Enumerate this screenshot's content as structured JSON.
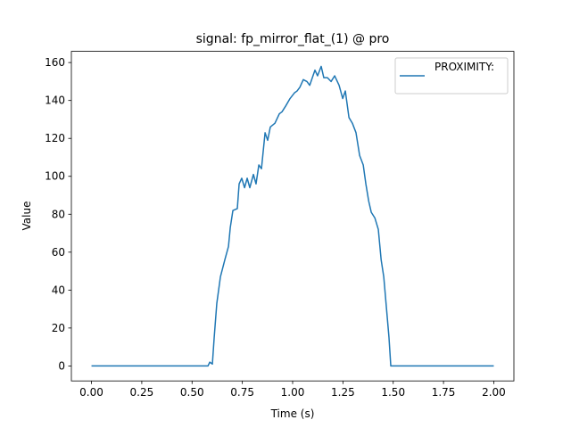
{
  "chart_data": {
    "type": "line",
    "title": "signal: fp_mirror_flat_(1) @ pro",
    "x_label": "Time (s)",
    "y_label": "Value",
    "xlim": [
      -0.1,
      2.1
    ],
    "ylim": [
      -7.9,
      165.9
    ],
    "xticks": [
      {
        "value": 0,
        "label": "0.00"
      },
      {
        "value": 0.25,
        "label": "0.25"
      },
      {
        "value": 0.5,
        "label": "0.50"
      },
      {
        "value": 0.75,
        "label": "0.75"
      },
      {
        "value": 1,
        "label": "1.00"
      },
      {
        "value": 1.25,
        "label": "1.25"
      },
      {
        "value": 1.5,
        "label": "1.50"
      },
      {
        "value": 1.75,
        "label": "1.75"
      },
      {
        "value": 2,
        "label": "2.00"
      }
    ],
    "yticks": [
      0,
      20,
      40,
      60,
      80,
      100,
      120,
      140,
      160
    ],
    "legend": "upper right",
    "series": [
      {
        "name": "PROXIMITY:",
        "color": "#1f77b4",
        "x": [
          0,
          0.579,
          0.588,
          0.601,
          0.61,
          0.623,
          0.641,
          0.663,
          0.681,
          0.69,
          0.703,
          0.725,
          0.734,
          0.747,
          0.761,
          0.774,
          0.787,
          0.805,
          0.818,
          0.832,
          0.845,
          0.863,
          0.876,
          0.889,
          0.912,
          0.934,
          0.947,
          0.965,
          0.987,
          1.009,
          1.022,
          1.036,
          1.053,
          1.071,
          1.085,
          1.098,
          1.111,
          1.124,
          1.142,
          1.155,
          1.173,
          1.191,
          1.209,
          1.231,
          1.249,
          1.262,
          1.28,
          1.297,
          1.315,
          1.333,
          1.351,
          1.364,
          1.378,
          1.391,
          1.409,
          1.426,
          1.44,
          1.453,
          1.466,
          1.479,
          1.488,
          2.0
        ],
        "values": [
          0,
          0,
          2,
          1,
          15,
          33,
          47,
          56,
          63,
          73,
          82,
          83,
          96,
          99,
          94,
          99,
          94,
          101,
          96,
          106,
          104,
          123,
          119,
          126,
          128,
          133,
          134,
          137,
          141,
          144,
          145,
          147,
          151,
          150,
          148,
          152,
          156,
          153,
          158,
          152,
          152,
          150,
          153,
          148,
          141,
          145,
          131,
          128,
          123,
          111,
          106,
          96,
          87,
          81,
          78,
          72,
          56,
          47,
          31,
          15,
          0,
          0
        ]
      }
    ]
  }
}
